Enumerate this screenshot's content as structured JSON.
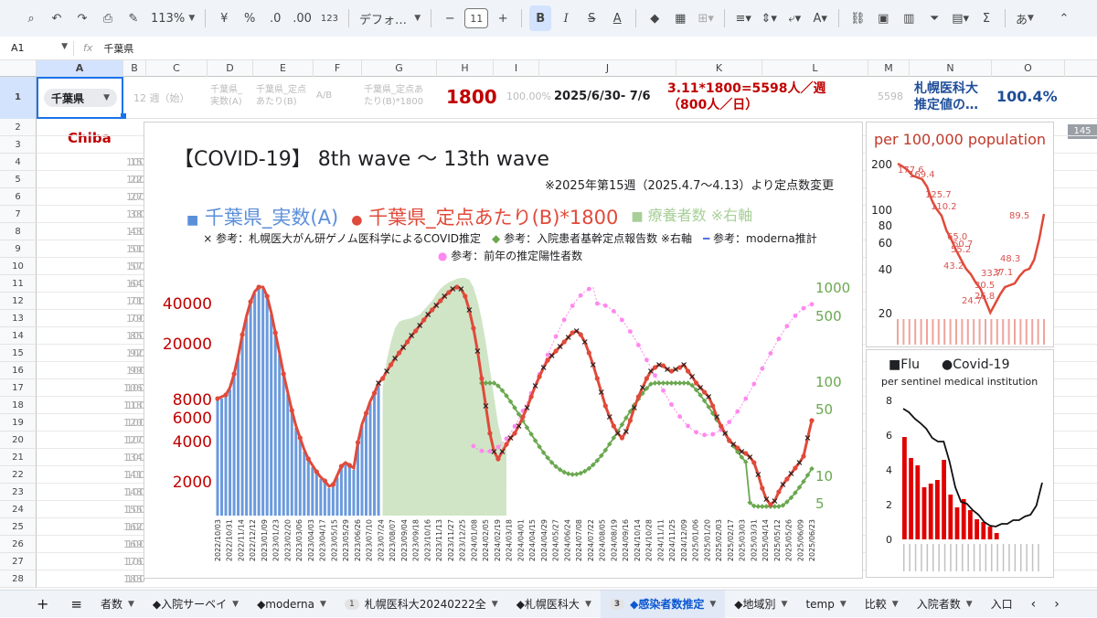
{
  "toolbar": {
    "zoom": "113%",
    "currency": "¥",
    "percent": "%",
    "dec_minus": ".0",
    "dec_plus": ".00",
    "number_format": "123",
    "font_name": "デフォ…",
    "font_size": "11",
    "bold": "B",
    "italic": "I",
    "strike": "S",
    "text_color": "A",
    "sum": "Σ",
    "input_mode": "あ"
  },
  "formula_bar": {
    "cell_ref": "A1",
    "fx": "fx",
    "value": "千葉県"
  },
  "columns": [
    "A",
    "B",
    "C",
    "D",
    "E",
    "F",
    "G",
    "H",
    "I",
    "J",
    "K",
    "L",
    "M",
    "N",
    "O"
  ],
  "rows": [
    "1",
    "2",
    "3",
    "4",
    "5",
    "6",
    "7",
    "8",
    "9",
    "10",
    "11",
    "12",
    "13",
    "14",
    "15",
    "16",
    "17",
    "18",
    "19",
    "20",
    "21",
    "22",
    "23",
    "24",
    "25",
    "26",
    "27",
    "28"
  ],
  "row1": {
    "prefecture": "千葉県",
    "week": "12 週（始）",
    "col_d": "千葉県_\n実数(A)",
    "col_e": "千葉県_定点\nあたり(B)",
    "col_f": "A/B",
    "col_g": "千葉県_定点あ\nたり(B)*1800",
    "col_h": "1800",
    "col_i": "100.00%",
    "col_j": "2025/6/30- 7/6",
    "col_k": "3.11*1800=5598人／週\n（800人／日）",
    "col_m": "5598",
    "col_n": "札幌医科大\n推定値の…",
    "col_o": "100.4%"
  },
  "chiba_label": "Chiba",
  "faint_values": [
    "15",
    "22",
    "27",
    "38",
    "43",
    "51",
    "57",
    "64",
    "71",
    "79",
    "85",
    "92",
    "99",
    "106",
    "113",
    "120",
    "127",
    "134",
    "141",
    "148",
    "155",
    "162",
    "169",
    "176",
    "183"
  ],
  "faint_tail": [
    "100",
    "100",
    "100",
    "100",
    "100",
    "100",
    "100",
    "100",
    "100",
    "100",
    "100",
    "100",
    "100",
    "100",
    "100",
    "100",
    "100",
    "100",
    "100",
    "100",
    "100",
    "100",
    "100",
    "100",
    "100"
  ],
  "side_number": "145",
  "main_chart": {
    "title": "【COVID-19】 8th wave 〜 13th wave",
    "note": "※2025年第15週（2025.4.7〜4.13）より定点数変更",
    "legend_main": [
      {
        "symbol": "■",
        "label": "千葉県_実数(A)",
        "color": "#5b8fd9"
      },
      {
        "symbol": "●",
        "label": "千葉県_定点あたり(B)*1800",
        "color": "#e04a3a"
      },
      {
        "symbol": "■",
        "label": "療養者数 ※右軸",
        "color": "#a8cf98"
      }
    ],
    "legend_sub": [
      {
        "symbol": "×",
        "label": "参考：札幌医大がん研ゲノム医科学によるCOVID推定",
        "color": "#222"
      },
      {
        "symbol": "◆",
        "label": "参考：入院患者基幹定点報告数 ※右軸",
        "color": "#6aa84f"
      },
      {
        "symbol": "━",
        "label": "参考：moderna推計",
        "color": "#5470e0"
      },
      {
        "symbol": "●",
        "label": "参考：前年の推定陽性者数",
        "color": "#ff88ee"
      }
    ],
    "left_ticks": [
      "40000",
      "20000",
      "8000",
      "6000",
      "4000",
      "2000"
    ],
    "right_ticks": [
      "1000",
      "500",
      "100",
      "50",
      "10",
      "5"
    ],
    "x_labels": [
      "2022/10/03",
      "2022/10/31",
      "2022/11/14",
      "2022/12/12",
      "2023/01/09",
      "2023/01/23",
      "2023/02/20",
      "2023/03/06",
      "2023/04/03",
      "2023/04/17",
      "2023/05/15",
      "2023/05/29",
      "2023/06/26",
      "2023/07/10",
      "2023/07/24",
      "2023/08/07",
      "2023/09/04",
      "2023/09/18",
      "2023/10/16",
      "2023/11/13",
      "2023/11/27",
      "2023/12/25",
      "2024/01/08",
      "2024/02/05",
      "2024/02/19",
      "2024/03/18",
      "2024/04/01",
      "2024/04/15",
      "2024/04/29",
      "2024/05/27",
      "2024/06/24",
      "2024/07/08",
      "2024/07/22",
      "2024/08/05",
      "2024/08/19",
      "2024/09/16",
      "2024/10/14",
      "2024/10/28",
      "2024/11/11",
      "2024/11/25",
      "2024/12/09",
      "2025/01/06",
      "2025/01/20",
      "2025/02/03",
      "2025/02/17",
      "2025/03/03",
      "2025/03/31",
      "2025/04/14",
      "2025/05/12",
      "2025/05/26",
      "2025/06/09",
      "2025/06/23"
    ]
  },
  "per100k_chart": {
    "title": "per 100,000 population",
    "y_ticks": [
      "200",
      "100",
      "80",
      "60",
      "40",
      "20"
    ],
    "labels": [
      "177.6",
      "169.4",
      "125.7",
      "110.2",
      "65.0",
      "60.7",
      "55.2",
      "43.2",
      "33.7",
      "37.1",
      "30.5",
      "26.8",
      "24.7",
      "48.3",
      "89.5"
    ]
  },
  "flu_chart": {
    "legend_flu": "■Flu",
    "legend_covid": "●Covid-19",
    "subtitle": "per sentinel medical institution",
    "y_ticks": [
      "8",
      "6",
      "4",
      "2",
      "0"
    ]
  },
  "tabs": [
    {
      "label": "者数",
      "badge": "",
      "active": false
    },
    {
      "label": "◆入院サーベイ",
      "badge": "",
      "active": false
    },
    {
      "label": "◆moderna",
      "badge": "",
      "active": false
    },
    {
      "label": "札幌医科大20240222全",
      "badge": "1",
      "active": false
    },
    {
      "label": "◆札幌医科大",
      "badge": "",
      "active": false
    },
    {
      "label": "◆感染者数推定",
      "badge": "3",
      "active": true
    },
    {
      "label": "◆地域別",
      "badge": "",
      "active": false
    },
    {
      "label": "temp",
      "badge": "",
      "active": false
    },
    {
      "label": "比較",
      "badge": "",
      "active": false
    },
    {
      "label": "入院者数",
      "badge": "",
      "active": false
    },
    {
      "label": "入口",
      "badge": "",
      "active": false
    }
  ],
  "colors": {
    "red": "#c00000",
    "blue_text": "#1f4e99",
    "selected": "#1a73e8"
  }
}
